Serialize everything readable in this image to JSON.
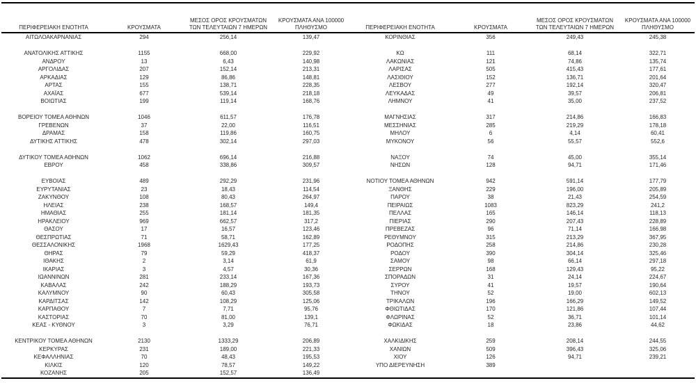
{
  "colors": {
    "background": "#ffffff",
    "text": "#262626",
    "rule": "#000000"
  },
  "table": {
    "headers": [
      "ΠΕΡΙΦΕΡΕΙΑΚΗ ΕΝΟΤΗΤΑ",
      "ΚΡΟΥΣΜΑΤΑ",
      "ΜΕΣΟΣ ΟΡΟΣ ΚΡΟΥΣΜΑΤΩΝ\nΤΩΝ ΤΕΛΕΥΤΑΙΩΝ 7 ΗΜΕΡΩΝ",
      "ΚΡΟΥΣΜΑΤΑ ΑΝΑ 100000\nΠΛΗΘΥΣΜΟ"
    ],
    "header_names": [
      "regional-unit",
      "cases",
      "avg-7day",
      "per-100k"
    ],
    "left_rows": [
      [
        "ΑΙΤΩΛΟΑΚΑΡΝΑΝΙΑΣ",
        "294",
        "256,14",
        "139,47"
      ],
      [],
      [
        "ΑΝΑΤΟΛΙΚΗΣ ΑΤΤΙΚΗΣ",
        "1155",
        "668,00",
        "229,92"
      ],
      [
        "ΑΝΔΡΟΥ",
        "13",
        "6,43",
        "140,98"
      ],
      [
        "ΑΡΓΟΛΙΔΑΣ",
        "207",
        "152,14",
        "213,31"
      ],
      [
        "ΑΡΚΑΔΙΑΣ",
        "129",
        "86,86",
        "148,81"
      ],
      [
        "ΑΡΤΑΣ",
        "155",
        "138,71",
        "228,35"
      ],
      [
        "ΑΧΑΪΑΣ",
        "677",
        "539,14",
        "218,18"
      ],
      [
        "ΒΟΙΩΤΙΑΣ",
        "199",
        "119,14",
        "168,76"
      ],
      [],
      [
        "ΒΟΡΕΙΟΥ ΤΟΜΕΑ ΑΘΗΝΩΝ",
        "1046",
        "611,57",
        "176,78"
      ],
      [
        "ΓΡΕΒΕΝΩΝ",
        "37",
        "22,00",
        "116,51"
      ],
      [
        "ΔΡΑΜΑΣ",
        "158",
        "119,86",
        "160,75"
      ],
      [
        "ΔΥΤΙΚΗΣ ΑΤΤΙΚΗΣ",
        "478",
        "302,14",
        "297,03"
      ],
      [],
      [
        "ΔΥΤΙΚΟΥ ΤΟΜΕΑ ΑΘΗΝΩΝ",
        "1062",
        "696,14",
        "216,88"
      ],
      [
        "ΕΒΡΟΥ",
        "458",
        "338,86",
        "309,57"
      ],
      [],
      [
        "ΕΥΒΟΙΑΣ",
        "489",
        "292,29",
        "231,96"
      ],
      [
        "ΕΥΡΥΤΑΝΙΑΣ",
        "23",
        "18,43",
        "114,54"
      ],
      [
        "ΖΑΚΥΝΘΟΥ",
        "108",
        "80,43",
        "264,97"
      ],
      [
        "ΗΛΕΙΑΣ",
        "238",
        "168,57",
        "149,4"
      ],
      [
        "ΗΜΑΘΙΑΣ",
        "255",
        "181,14",
        "181,35"
      ],
      [
        "ΗΡΑΚΛΕΙΟΥ",
        "969",
        "662,57",
        "317,2"
      ],
      [
        "ΘΑΣΟΥ",
        "17",
        "16,57",
        "123,46"
      ],
      [
        "ΘΕΣΠΡΩΤΙΑΣ",
        "71",
        "58,71",
        "162,89"
      ],
      [
        "ΘΕΣΣΑΛΟΝΙΚΗΣ",
        "1968",
        "1629,43",
        "177,25"
      ],
      [
        "ΘΗΡΑΣ",
        "79",
        "59,29",
        "418,37"
      ],
      [
        "ΙΘΑΚΗΣ",
        "2",
        "3,14",
        "61,9"
      ],
      [
        "ΙΚΑΡΙΑΣ",
        "3",
        "4,57",
        "30,36"
      ],
      [
        "ΙΩΑΝΝΙΝΩΝ",
        "281",
        "233,14",
        "167,36"
      ],
      [
        "ΚΑΒΑΛΑΣ",
        "242",
        "188,29",
        "193,73"
      ],
      [
        "ΚΑΛΥΜΝΟΥ",
        "90",
        "60,43",
        "305,58"
      ],
      [
        "ΚΑΡΔΙΤΣΑΣ",
        "142",
        "108,29",
        "125,06"
      ],
      [
        "ΚΑΡΠΑΘΟΥ",
        "7",
        "7,71",
        "95,76"
      ],
      [
        "ΚΑΣΤΟΡΙΑΣ",
        "70",
        "81,00",
        "139,1"
      ],
      [
        "ΚΕΑΣ - ΚΥΘΝΟΥ",
        "3",
        "3,29",
        "76,71"
      ],
      [],
      [
        "ΚΕΝΤΡΙΚΟΥ ΤΟΜΕΑ ΑΘΗΝΩΝ",
        "2130",
        "1333,29",
        "206,89"
      ],
      [
        "ΚΕΡΚΥΡΑΣ",
        "231",
        "189,00",
        "221,33"
      ],
      [
        "ΚΕΦΑΛΛΗΝΙΑΣ",
        "70",
        "48,43",
        "195,53"
      ],
      [
        "ΚΙΛΚΙΣ",
        "120",
        "78,57",
        "149,22"
      ],
      [
        "ΚΟΖΑΝΗΣ",
        "205",
        "152,57",
        "136,49"
      ]
    ],
    "right_rows": [
      [
        "ΚΟΡΙΝΘΙΑΣ",
        "356",
        "249,43",
        "245,38"
      ],
      [],
      [
        "ΚΩ",
        "111",
        "68,14",
        "322,71"
      ],
      [
        "ΛΑΚΩΝΙΑΣ",
        "121",
        "74,86",
        "135,74"
      ],
      [
        "ΛΑΡΙΣΑΣ",
        "505",
        "415,43",
        "177,61"
      ],
      [
        "ΛΑΣΙΘΙΟΥ",
        "152",
        "136,71",
        "201,64"
      ],
      [
        "ΛΕΣΒΟΥ",
        "277",
        "192,14",
        "320,47"
      ],
      [
        "ΛΕΥΚΑΔΑΣ",
        "49",
        "39,57",
        "206,81"
      ],
      [
        "ΛΗΜΝΟΥ",
        "41",
        "35,00",
        "237,52"
      ],
      [],
      [
        "ΜΑΓΝΗΣΙΑΣ",
        "317",
        "214,86",
        "166,83"
      ],
      [
        "ΜΕΣΣΗΝΙΑΣ",
        "285",
        "219,29",
        "178,18"
      ],
      [
        "ΜΗΛΟΥ",
        "6",
        "4,14",
        "60,41"
      ],
      [
        "ΜΥΚΟΝΟΥ",
        "56",
        "55,57",
        "552,6"
      ],
      [],
      [
        "ΝΑΞΟΥ",
        "74",
        "45,00",
        "355,14"
      ],
      [
        "ΝΗΣΩΝ",
        "128",
        "94,71",
        "171,46"
      ],
      [],
      [
        "ΝΟΤΙΟΥ ΤΟΜΕΑ ΑΘΗΝΩΝ",
        "942",
        "591,14",
        "177,79"
      ],
      [
        "ΞΑΝΘΗΣ",
        "229",
        "196,00",
        "205,89"
      ],
      [
        "ΠΑΡΟΥ",
        "38",
        "21,43",
        "254,59"
      ],
      [
        "ΠΕΙΡΑΙΩΣ",
        "1083",
        "823,29",
        "241,2"
      ],
      [
        "ΠΕΛΛΑΣ",
        "165",
        "146,14",
        "118,13"
      ],
      [
        "ΠΙΕΡΙΑΣ",
        "290",
        "207,43",
        "228,89"
      ],
      [
        "ΠΡΕΒΕΖΑΣ",
        "96",
        "71,14",
        "166,98"
      ],
      [
        "ΡΕΘΥΜΝΟΥ",
        "315",
        "213,29",
        "367,95"
      ],
      [
        "ΡΟΔΟΠΗΣ",
        "258",
        "214,86",
        "230,28"
      ],
      [
        "ΡΟΔΟΥ",
        "390",
        "304,14",
        "325,46"
      ],
      [
        "ΣΑΜΟΥ",
        "98",
        "66,14",
        "297,18"
      ],
      [
        "ΣΕΡΡΩΝ",
        "168",
        "129,43",
        "95,22"
      ],
      [
        "ΣΠΟΡΑΔΩΝ",
        "31",
        "24,14",
        "224,67"
      ],
      [
        "ΣΥΡΟΥ",
        "41",
        "19,57",
        "190,64"
      ],
      [
        "ΤΗΝΟΥ",
        "52",
        "19,00",
        "602,13"
      ],
      [
        "ΤΡΙΚΑΛΩΝ",
        "196",
        "166,29",
        "149,52"
      ],
      [
        "ΦΘΙΩΤΙΔΑΣ",
        "170",
        "121,86",
        "107,44"
      ],
      [
        "ΦΛΩΡΙΝΑΣ",
        "52",
        "36,71",
        "101,14"
      ],
      [
        "ΦΩΚΙΔΑΣ",
        "18",
        "23,86",
        "44,62"
      ],
      [],
      [
        "ΧΑΛΚΙΔΙΚΗΣ",
        "259",
        "208,14",
        "244,55"
      ],
      [
        "ΧΑΝΙΩΝ",
        "509",
        "396,43",
        "325,06"
      ],
      [
        "ΧΙΟΥ",
        "126",
        "94,71",
        "239,21"
      ],
      [
        "ΥΠΟ ΔΙΕΡΕΥΝΗΣΗ",
        "389",
        "",
        ""
      ],
      []
    ]
  }
}
